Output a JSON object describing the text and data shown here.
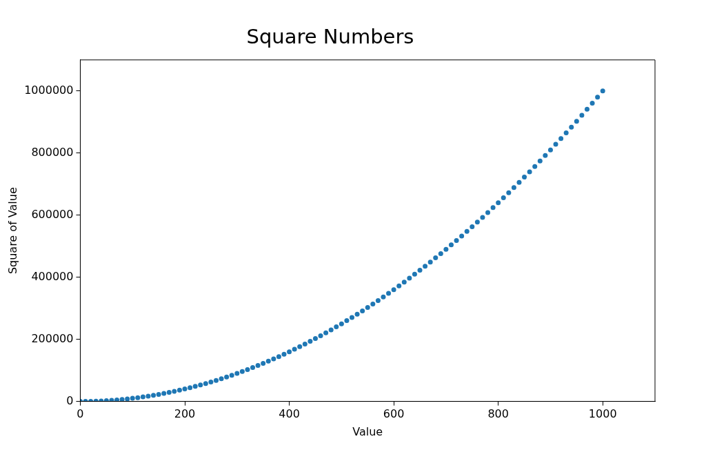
{
  "chart_data": {
    "type": "scatter",
    "title": "Square Numbers",
    "xlabel": "Value",
    "ylabel": "Square of Value",
    "color": "#1f77b4",
    "marker": "circle",
    "x": [
      0,
      10,
      20,
      30,
      40,
      50,
      60,
      70,
      80,
      90,
      100,
      110,
      120,
      130,
      140,
      150,
      160,
      170,
      180,
      190,
      200,
      210,
      220,
      230,
      240,
      250,
      260,
      270,
      280,
      290,
      300,
      310,
      320,
      330,
      340,
      350,
      360,
      370,
      380,
      390,
      400,
      410,
      420,
      430,
      440,
      450,
      460,
      470,
      480,
      490,
      500,
      510,
      520,
      530,
      540,
      550,
      560,
      570,
      580,
      590,
      600,
      610,
      620,
      630,
      640,
      650,
      660,
      670,
      680,
      690,
      700,
      710,
      720,
      730,
      740,
      750,
      760,
      770,
      780,
      790,
      800,
      810,
      820,
      830,
      840,
      850,
      860,
      870,
      880,
      890,
      900,
      910,
      920,
      930,
      940,
      950,
      960,
      970,
      980,
      990,
      1000
    ],
    "values": [
      0,
      100,
      400,
      900,
      1600,
      2500,
      3600,
      4900,
      6400,
      8100,
      10000,
      12100,
      14400,
      16900,
      19600,
      22500,
      25600,
      28900,
      32400,
      36100,
      40000,
      44100,
      48400,
      52900,
      57600,
      62500,
      67600,
      72900,
      78400,
      84100,
      90000,
      96100,
      102400,
      108900,
      115600,
      122500,
      129600,
      136900,
      144400,
      152100,
      160000,
      168100,
      176400,
      184900,
      193600,
      202500,
      211600,
      220900,
      230400,
      240100,
      250000,
      260100,
      270400,
      280900,
      291600,
      302500,
      313600,
      324900,
      336400,
      348100,
      360000,
      372100,
      384400,
      396900,
      409600,
      422500,
      435600,
      448900,
      462400,
      476100,
      490000,
      504100,
      518400,
      532900,
      547600,
      562500,
      577600,
      592900,
      608400,
      624100,
      640000,
      656100,
      672400,
      688900,
      705600,
      722500,
      739600,
      756900,
      774400,
      792100,
      810000,
      828100,
      846400,
      864900,
      883600,
      902500,
      921600,
      940900,
      960400,
      980100,
      1000000
    ],
    "xlim": [
      0,
      1100
    ],
    "xticks": [
      0,
      200,
      400,
      600,
      800,
      1000
    ],
    "ylim": [
      0,
      1100000
    ],
    "yticks": [
      0,
      200000,
      400000,
      600000,
      800000,
      1000000
    ]
  }
}
